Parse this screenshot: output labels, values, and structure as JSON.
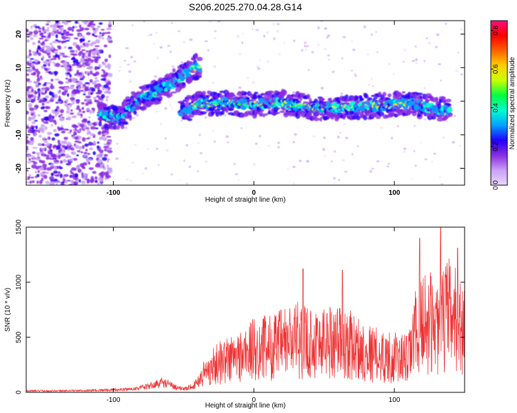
{
  "title": "S206.2025.270.04.28.G14",
  "chart_data": [
    {
      "type": "heatmap",
      "xlabel": "Height of straight line (km)",
      "ylabel": "Frequency (Hz)",
      "xlim": [
        -162,
        150
      ],
      "ylim": [
        -25,
        24
      ],
      "xticks": [
        -100,
        0,
        100
      ],
      "yticks": [
        -20,
        -10,
        0,
        10,
        20
      ],
      "colorbar": {
        "label": "Normalized spectral amplitude",
        "range": [
          0,
          0.85
        ],
        "ticks": [
          "0.0",
          "0.2",
          "0.4",
          "0.6",
          "0.8"
        ],
        "stops": [
          "#e8d8ff",
          "#c9a0f5",
          "#8a2be2",
          "#2200ff",
          "#00a0ff",
          "#00ffd0",
          "#00ff40",
          "#c8ff00",
          "#ffd000",
          "#ff6000",
          "#ff0000",
          "#ff1080"
        ]
      },
      "ridge": [
        {
          "x": -110,
          "y": -4
        },
        {
          "x": -95,
          "y": -5
        },
        {
          "x": -80,
          "y": 1
        },
        {
          "x": -70,
          "y": 3
        },
        {
          "x": -55,
          "y": 6
        },
        {
          "x": -38,
          "y": 11
        },
        {
          "x": -52,
          "y": -3
        },
        {
          "x": -40,
          "y": -1
        },
        {
          "x": -20,
          "y": -0.5
        },
        {
          "x": 0,
          "y": -1
        },
        {
          "x": 20,
          "y": -0.5
        },
        {
          "x": 45,
          "y": -2
        },
        {
          "x": 65,
          "y": -2
        },
        {
          "x": 85,
          "y": -1.5
        },
        {
          "x": 110,
          "y": -0.5
        },
        {
          "x": 120,
          "y": -1.5
        },
        {
          "x": 140,
          "y": -3
        }
      ]
    },
    {
      "type": "line",
      "xlabel": "Height of straight line (km)",
      "ylabel": "SNR (10 * v/v)",
      "xlim": [
        -162,
        150
      ],
      "ylim": [
        0,
        1500
      ],
      "xticks": [
        -100,
        0,
        100
      ],
      "yticks": [
        0,
        500,
        1000,
        1500
      ],
      "color": "#ee3333",
      "envelope": [
        {
          "x": -162,
          "y": 20
        },
        {
          "x": -120,
          "y": 25
        },
        {
          "x": -90,
          "y": 40
        },
        {
          "x": -75,
          "y": 80
        },
        {
          "x": -65,
          "y": 140
        },
        {
          "x": -50,
          "y": 40
        },
        {
          "x": -42,
          "y": 100
        },
        {
          "x": -35,
          "y": 300
        },
        {
          "x": -25,
          "y": 450
        },
        {
          "x": -10,
          "y": 550
        },
        {
          "x": 0,
          "y": 650
        },
        {
          "x": 15,
          "y": 700
        },
        {
          "x": 30,
          "y": 800
        },
        {
          "x": 45,
          "y": 750
        },
        {
          "x": 60,
          "y": 800
        },
        {
          "x": 75,
          "y": 650
        },
        {
          "x": 90,
          "y": 550
        },
        {
          "x": 100,
          "y": 520
        },
        {
          "x": 110,
          "y": 500
        },
        {
          "x": 115,
          "y": 900
        },
        {
          "x": 120,
          "y": 1100
        },
        {
          "x": 130,
          "y": 1000
        },
        {
          "x": 140,
          "y": 1200
        },
        {
          "x": 150,
          "y": 900
        }
      ],
      "peaks": [
        {
          "x": 35,
          "y": 1120
        },
        {
          "x": 63,
          "y": 1110
        },
        {
          "x": 118,
          "y": 1400
        },
        {
          "x": 133,
          "y": 1510
        },
        {
          "x": 145,
          "y": 1310
        }
      ]
    }
  ]
}
